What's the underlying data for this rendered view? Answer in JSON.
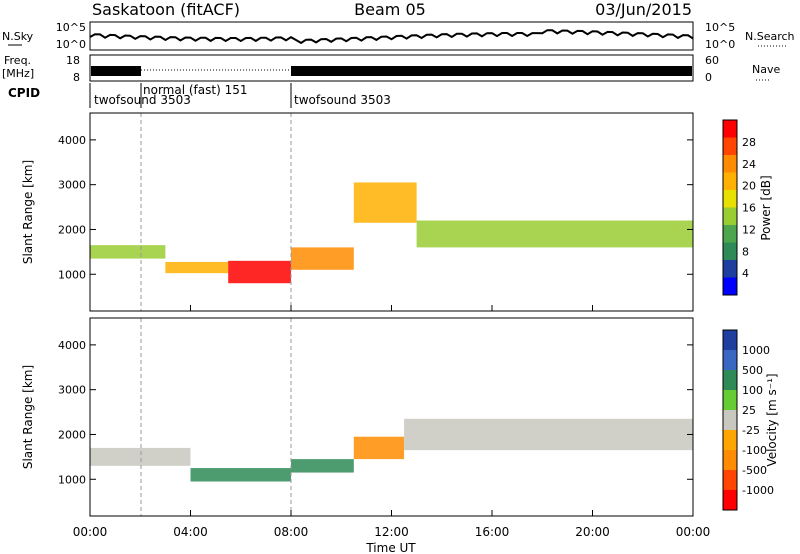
{
  "header": {
    "station": "Saskatoon (fitACF)",
    "beam": "Beam 05",
    "date": "03/Jun/2015"
  },
  "noise_panel": {
    "left_label": "N.Sky",
    "right_label": "N.Search",
    "left_ticks": [
      "10^5",
      "10^0"
    ],
    "right_ticks": [
      "10^5",
      "10^0"
    ]
  },
  "freq_panel": {
    "left_label_1": "Freq.",
    "left_label_2": "[MHz]",
    "right_label": "Nave",
    "left_ticks": [
      "18",
      "8"
    ],
    "right_ticks": [
      "60",
      "0"
    ]
  },
  "cpid_panel": {
    "label": "CPID",
    "segments": [
      {
        "name": "twofsound 3503",
        "start": 0,
        "end": 2
      },
      {
        "name": "normal (fast) 151",
        "start": 2,
        "end": 8
      },
      {
        "name": "twofsound 3503",
        "start": 8,
        "end": 24
      }
    ]
  },
  "power_panel": {
    "ylabel": "Slant Range [km]",
    "yticks": [
      "1000",
      "2000",
      "3000",
      "4000"
    ],
    "colorbar_label": "Power [dB]",
    "colorbar_ticks": [
      "28",
      "24",
      "20",
      "16",
      "12",
      "8",
      "4"
    ],
    "colorbar_colors": [
      "#ff0000",
      "#ff4500",
      "#ff8c00",
      "#ffb000",
      "#e8e000",
      "#9acd32",
      "#4da64d",
      "#2e8b57",
      "#1f3fa0",
      "#0000ff"
    ]
  },
  "velocity_panel": {
    "ylabel": "Slant Range [km]",
    "yticks": [
      "1000",
      "2000",
      "3000",
      "4000"
    ],
    "colorbar_label": "Velocity [m s⁻¹]",
    "colorbar_ticks": [
      "1000",
      "500",
      "100",
      "25",
      "-25",
      "-100",
      "-500",
      "-1000"
    ],
    "colorbar_colors": [
      "#1f3fa0",
      "#3a66c4",
      "#2e8b57",
      "#66cc33",
      "#c8c8c0",
      "#ffa500",
      "#ff8c00",
      "#ff4500",
      "#ff0000"
    ]
  },
  "xaxis": {
    "label": "Time UT",
    "ticks": [
      "00:00",
      "04:00",
      "08:00",
      "12:00",
      "16:00",
      "20:00",
      "00:00"
    ]
  },
  "chart_data": [
    {
      "type": "heatmap",
      "title": "Saskatoon (fitACF) Beam 05 03/Jun/2015",
      "xlabel": "Time UT",
      "ylabel": "Slant Range [km]",
      "xlim": [
        0,
        24
      ],
      "ylim": [
        180,
        4600
      ],
      "quantity": "Power [dB]",
      "colorbar_range": [
        0,
        30
      ],
      "bands": [
        {
          "t_start": 0.0,
          "t_end": 3.0,
          "range_center": 1500,
          "range_width": 300,
          "value": 14
        },
        {
          "t_start": 3.0,
          "t_end": 5.5,
          "range_center": 1150,
          "range_width": 250,
          "value": 18
        },
        {
          "t_start": 5.5,
          "t_end": 8.0,
          "range_center": 1050,
          "range_width": 500,
          "value": 28
        },
        {
          "t_start": 8.0,
          "t_end": 10.5,
          "range_center": 1350,
          "range_width": 500,
          "value": 22
        },
        {
          "t_start": 10.5,
          "t_end": 13.0,
          "range_center": 2600,
          "range_width": 900,
          "value": 18
        },
        {
          "t_start": 13.0,
          "t_end": 24.0,
          "range_center": 1900,
          "range_width": 600,
          "value": 12
        }
      ]
    },
    {
      "type": "heatmap",
      "title": "",
      "xlabel": "Time UT",
      "ylabel": "Slant Range [km]",
      "xlim": [
        0,
        24
      ],
      "ylim": [
        180,
        4600
      ],
      "quantity": "Velocity [m s⁻¹]",
      "colorbar_range": [
        -1000,
        1000
      ],
      "bands": [
        {
          "t_start": 0.0,
          "t_end": 4.0,
          "range_center": 1500,
          "range_width": 400,
          "value": 0
        },
        {
          "t_start": 4.0,
          "t_end": 8.0,
          "range_center": 1100,
          "range_width": 300,
          "value": 60
        },
        {
          "t_start": 8.0,
          "t_end": 10.5,
          "range_center": 1300,
          "range_width": 300,
          "value": 80
        },
        {
          "t_start": 10.5,
          "t_end": 12.5,
          "range_center": 1700,
          "range_width": 500,
          "value": -200
        },
        {
          "t_start": 12.5,
          "t_end": 24.0,
          "range_center": 2000,
          "range_width": 700,
          "value": 0
        }
      ]
    }
  ]
}
